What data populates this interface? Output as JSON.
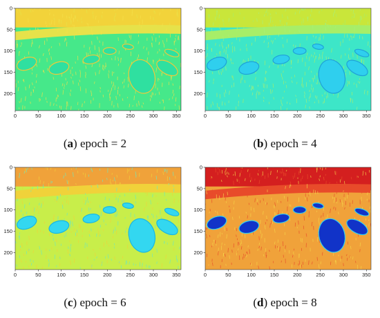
{
  "panels": [
    {
      "letter": "a",
      "caption": "epoch = 2",
      "palette": "greenish",
      "xticks": [
        "0",
        "50",
        "100",
        "150",
        "200",
        "250",
        "300",
        "350"
      ],
      "yticks": [
        "0",
        "50",
        "100",
        "150",
        "200"
      ]
    },
    {
      "letter": "b",
      "caption": "epoch = 4",
      "palette": "cyanish",
      "xticks": [
        "0",
        "50",
        "100",
        "150",
        "200",
        "250",
        "300",
        "350"
      ],
      "yticks": [
        "0",
        "50",
        "100",
        "150",
        "200"
      ]
    },
    {
      "letter": "c",
      "caption": "epoch = 6",
      "palette": "yellowcyan",
      "xticks": [
        "0",
        "50",
        "100",
        "150",
        "200",
        "250",
        "300",
        "350"
      ],
      "yticks": [
        "0",
        "50",
        "100",
        "150",
        "200"
      ]
    },
    {
      "letter": "d",
      "caption": "epoch = 8",
      "palette": "hot",
      "xticks": [
        "0",
        "50",
        "100",
        "150",
        "200",
        "250",
        "300",
        "350"
      ],
      "yticks": [
        "0",
        "50",
        "100",
        "150",
        "200"
      ]
    }
  ],
  "colors": {
    "greenish": {
      "bg": "#46e88a",
      "sky": "#f2d33a",
      "band": "#e6e24a",
      "blob": "#2fe0a0",
      "edge": "#f0c93a",
      "noise": "#f5e04a"
    },
    "cyanish": {
      "bg": "#3de6c8",
      "sky": "#c9e63a",
      "band": "#a7ee68",
      "blob": "#2fcfee",
      "edge": "#1fa2d8",
      "noise": "#a8f07a"
    },
    "yellowcyan": {
      "bg": "#c8ee4a",
      "sky": "#f0a23a",
      "band": "#f0d23a",
      "blob": "#33d7f0",
      "edge": "#19b7e3",
      "noise": "#6de8c0"
    },
    "hot": {
      "bg": "#f0a23a",
      "sky": "#d41f1f",
      "band": "#e84b2a",
      "blob": "#1133c8",
      "edge": "#35d0ee",
      "noise": "#f5d54a"
    }
  }
}
